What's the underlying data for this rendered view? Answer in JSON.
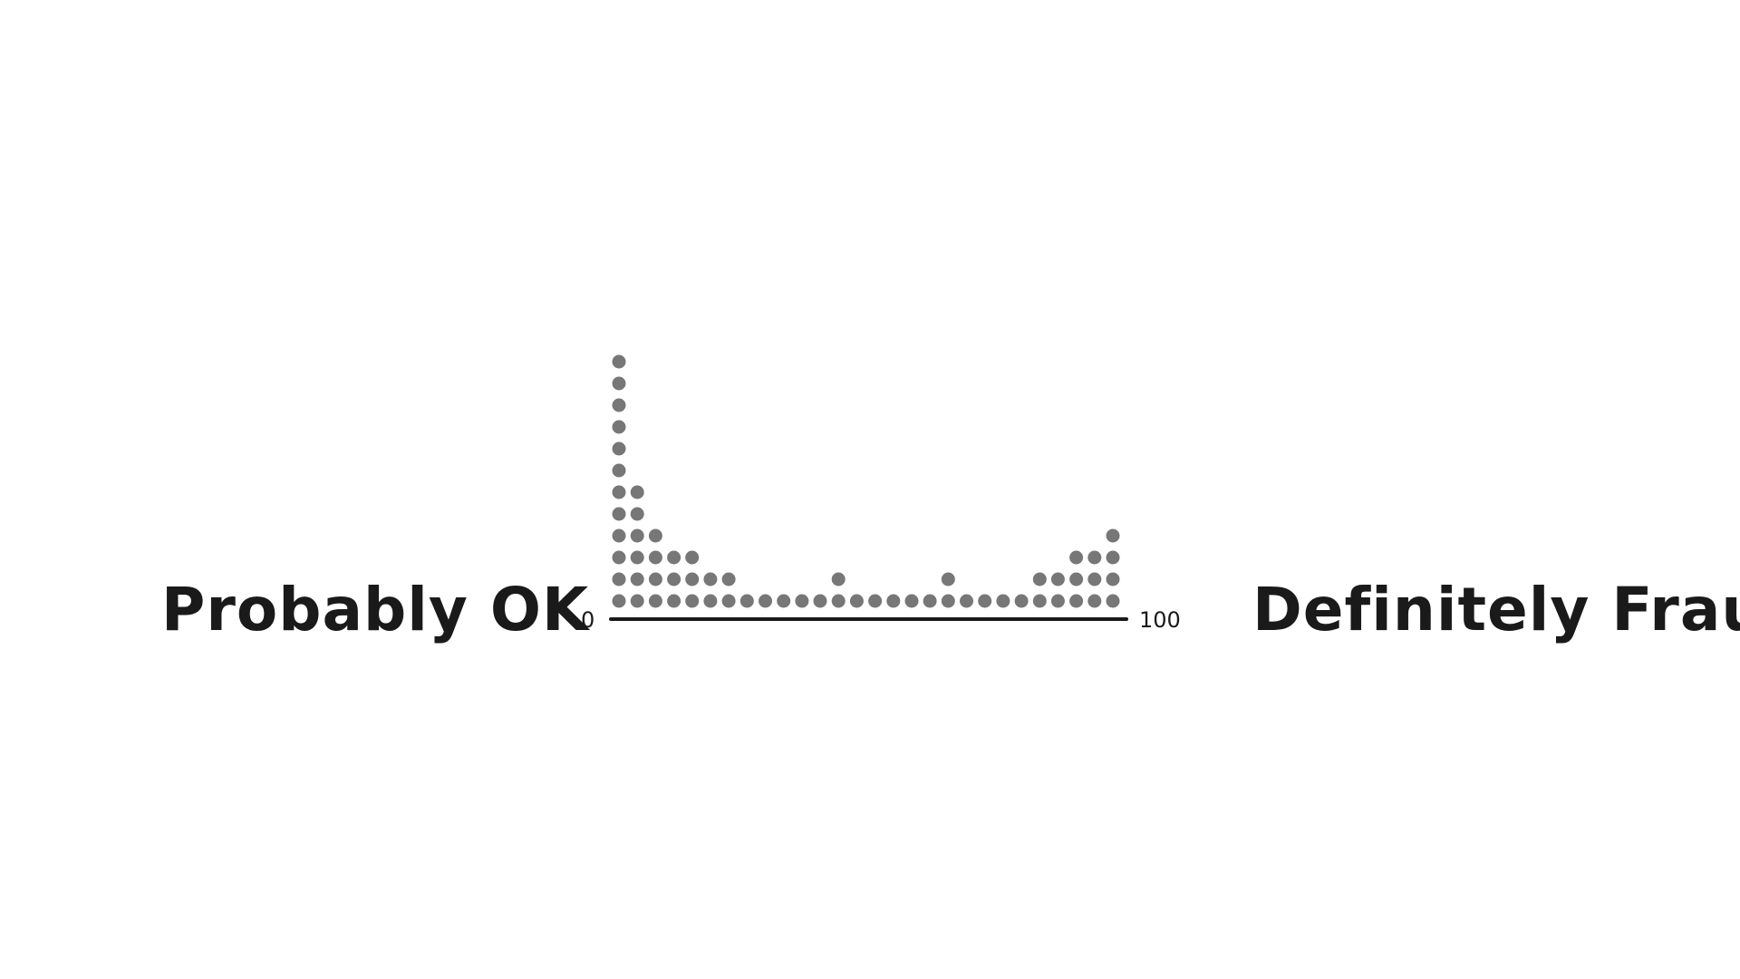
{
  "chart_data": {
    "type": "scatter",
    "subtype": "dot-histogram",
    "xlim": [
      0,
      100
    ],
    "x_tick_labels": [
      "0",
      "100"
    ],
    "left_label": "Probably OK",
    "right_label": "Definitely Fraud",
    "counts": [
      12,
      6,
      4,
      3,
      3,
      2,
      2,
      1,
      1,
      1,
      1,
      1,
      2,
      1,
      1,
      1,
      1,
      1,
      2,
      1,
      1,
      1,
      1,
      2,
      2,
      3,
      3,
      4
    ],
    "colors": {
      "dots": "#777777",
      "text": "#1a1a1a",
      "background": "#ffffff"
    }
  }
}
